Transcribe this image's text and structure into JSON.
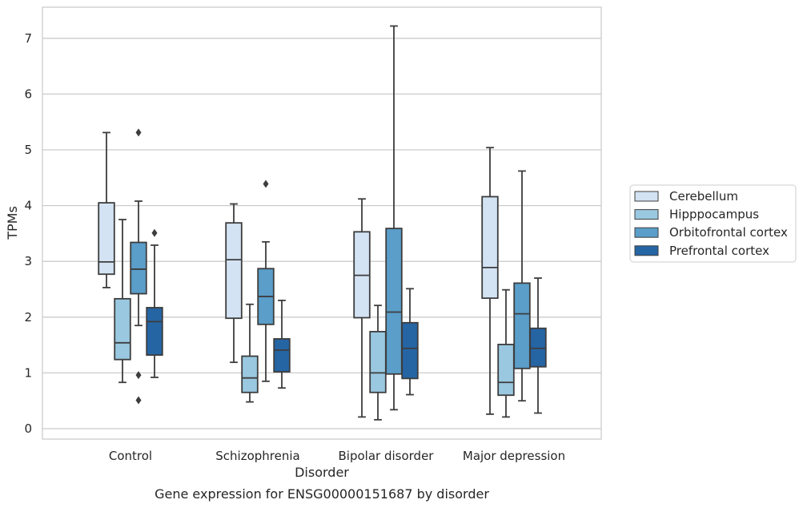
{
  "chart_data": {
    "type": "box",
    "title": "",
    "caption": "Gene expression for ENSG00000151687 by disorder",
    "xlabel": "Disorder",
    "ylabel": "TPMs",
    "ylim": [
      -0.18,
      7.6
    ],
    "yticks": [
      0,
      1,
      2,
      3,
      4,
      5,
      6,
      7
    ],
    "grid": "horizontal",
    "legend_position": "right",
    "categories": [
      "Control",
      "Schizophrenia",
      "Bipolar disorder",
      "Major depression"
    ],
    "series": [
      {
        "name": "Cerebellum",
        "color": "#d3e3f3",
        "boxes": [
          {
            "whislo": 2.53,
            "q1": 2.77,
            "med": 2.99,
            "q3": 4.05,
            "whishi": 5.31,
            "fliers": []
          },
          {
            "whislo": 1.19,
            "q1": 1.98,
            "med": 3.03,
            "q3": 3.69,
            "whishi": 4.03,
            "fliers": []
          },
          {
            "whislo": 0.21,
            "q1": 1.99,
            "med": 2.75,
            "q3": 3.53,
            "whishi": 4.12,
            "fliers": []
          },
          {
            "whislo": 0.26,
            "q1": 2.34,
            "med": 2.89,
            "q3": 4.16,
            "whishi": 5.04,
            "fliers": []
          }
        ]
      },
      {
        "name": "Hipppocampus",
        "color": "#9ac8e0",
        "boxes": [
          {
            "whislo": 0.83,
            "q1": 1.24,
            "med": 1.54,
            "q3": 2.33,
            "whishi": 3.75,
            "fliers": []
          },
          {
            "whislo": 0.48,
            "q1": 0.65,
            "med": 0.91,
            "q3": 1.3,
            "whishi": 2.23,
            "fliers": []
          },
          {
            "whislo": 0.16,
            "q1": 0.65,
            "med": 1.0,
            "q3": 1.74,
            "whishi": 2.21,
            "fliers": []
          },
          {
            "whislo": 0.21,
            "q1": 0.6,
            "med": 0.83,
            "q3": 1.51,
            "whishi": 2.49,
            "fliers": []
          }
        ]
      },
      {
        "name": "Orbitofrontal cortex",
        "color": "#5a9ec9",
        "boxes": [
          {
            "whislo": 1.85,
            "q1": 2.42,
            "med": 2.86,
            "q3": 3.34,
            "whishi": 4.08,
            "fliers": [
              5.31,
              0.96,
              0.51
            ]
          },
          {
            "whislo": 0.85,
            "q1": 1.87,
            "med": 2.37,
            "q3": 2.87,
            "whishi": 3.35,
            "fliers": [
              4.39
            ]
          },
          {
            "whislo": 0.34,
            "q1": 0.98,
            "med": 2.09,
            "q3": 3.59,
            "whishi": 7.22,
            "fliers": []
          },
          {
            "whislo": 0.5,
            "q1": 1.08,
            "med": 2.06,
            "q3": 2.61,
            "whishi": 4.62,
            "fliers": []
          }
        ]
      },
      {
        "name": "Prefrontal cortex",
        "color": "#2565a4",
        "boxes": [
          {
            "whislo": 0.92,
            "q1": 1.32,
            "med": 1.92,
            "q3": 2.17,
            "whishi": 3.29,
            "fliers": [
              3.51
            ]
          },
          {
            "whislo": 0.73,
            "q1": 1.02,
            "med": 1.41,
            "q3": 1.61,
            "whishi": 2.3,
            "fliers": []
          },
          {
            "whislo": 0.61,
            "q1": 0.9,
            "med": 1.44,
            "q3": 1.9,
            "whishi": 2.51,
            "fliers": []
          },
          {
            "whislo": 0.28,
            "q1": 1.11,
            "med": 1.44,
            "q3": 1.8,
            "whishi": 2.7,
            "fliers": []
          }
        ]
      }
    ]
  }
}
